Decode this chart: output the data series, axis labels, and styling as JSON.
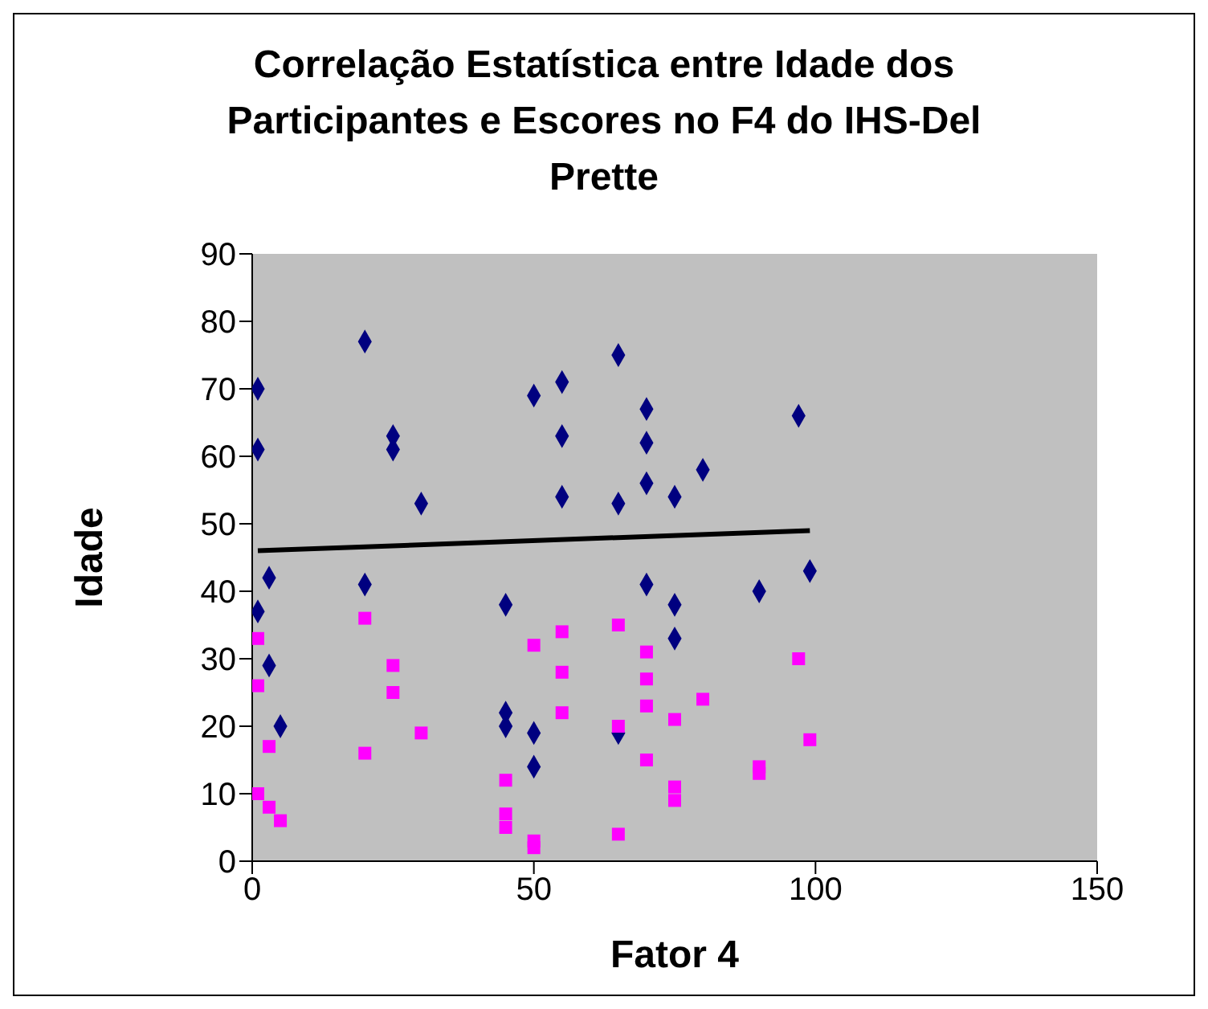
{
  "chart_data": {
    "type": "scatter",
    "title": "Correlação Estatística entre Idade dos Participantes e Escores no F4 do IHS-Del Prette",
    "xlabel": "Fator 4",
    "ylabel": "Idade",
    "xlim": [
      0,
      150
    ],
    "xticks": [
      0,
      50,
      100,
      150
    ],
    "ylim": [
      0,
      90
    ],
    "yticks": [
      0,
      10,
      20,
      30,
      40,
      50,
      60,
      70,
      80,
      90
    ],
    "grid": false,
    "series": [
      {
        "marker": "diamond",
        "color": "#000080",
        "x": [
          1,
          1,
          1,
          3,
          3,
          5,
          20,
          20,
          25,
          25,
          30,
          45,
          45,
          45,
          50,
          50,
          50,
          55,
          55,
          55,
          65,
          65,
          65,
          70,
          70,
          70,
          70,
          75,
          75,
          75,
          80,
          90,
          97,
          99
        ],
        "values": [
          70,
          61,
          37,
          42,
          29,
          20,
          77,
          41,
          63,
          61,
          53,
          38,
          22,
          20,
          69,
          19,
          14,
          71,
          63,
          54,
          75,
          53,
          19,
          67,
          62,
          56,
          41,
          54,
          38,
          33,
          58,
          40,
          66,
          43
        ]
      },
      {
        "marker": "square",
        "color": "#ff00ff",
        "x": [
          1,
          1,
          1,
          3,
          3,
          5,
          20,
          20,
          25,
          25,
          30,
          45,
          45,
          45,
          50,
          50,
          50,
          55,
          55,
          55,
          65,
          65,
          65,
          70,
          70,
          70,
          70,
          75,
          75,
          75,
          80,
          90,
          90,
          97,
          99
        ],
        "values": [
          33,
          26,
          10,
          17,
          8,
          6,
          36,
          16,
          29,
          25,
          19,
          12,
          7,
          5,
          32,
          3,
          2,
          34,
          28,
          22,
          35,
          20,
          4,
          31,
          27,
          23,
          15,
          21,
          11,
          9,
          24,
          14,
          13,
          30,
          18
        ]
      },
      {
        "type": "line",
        "marker": "none",
        "color": "#000000",
        "x": [
          1,
          99
        ],
        "values": [
          46,
          49
        ]
      }
    ]
  }
}
